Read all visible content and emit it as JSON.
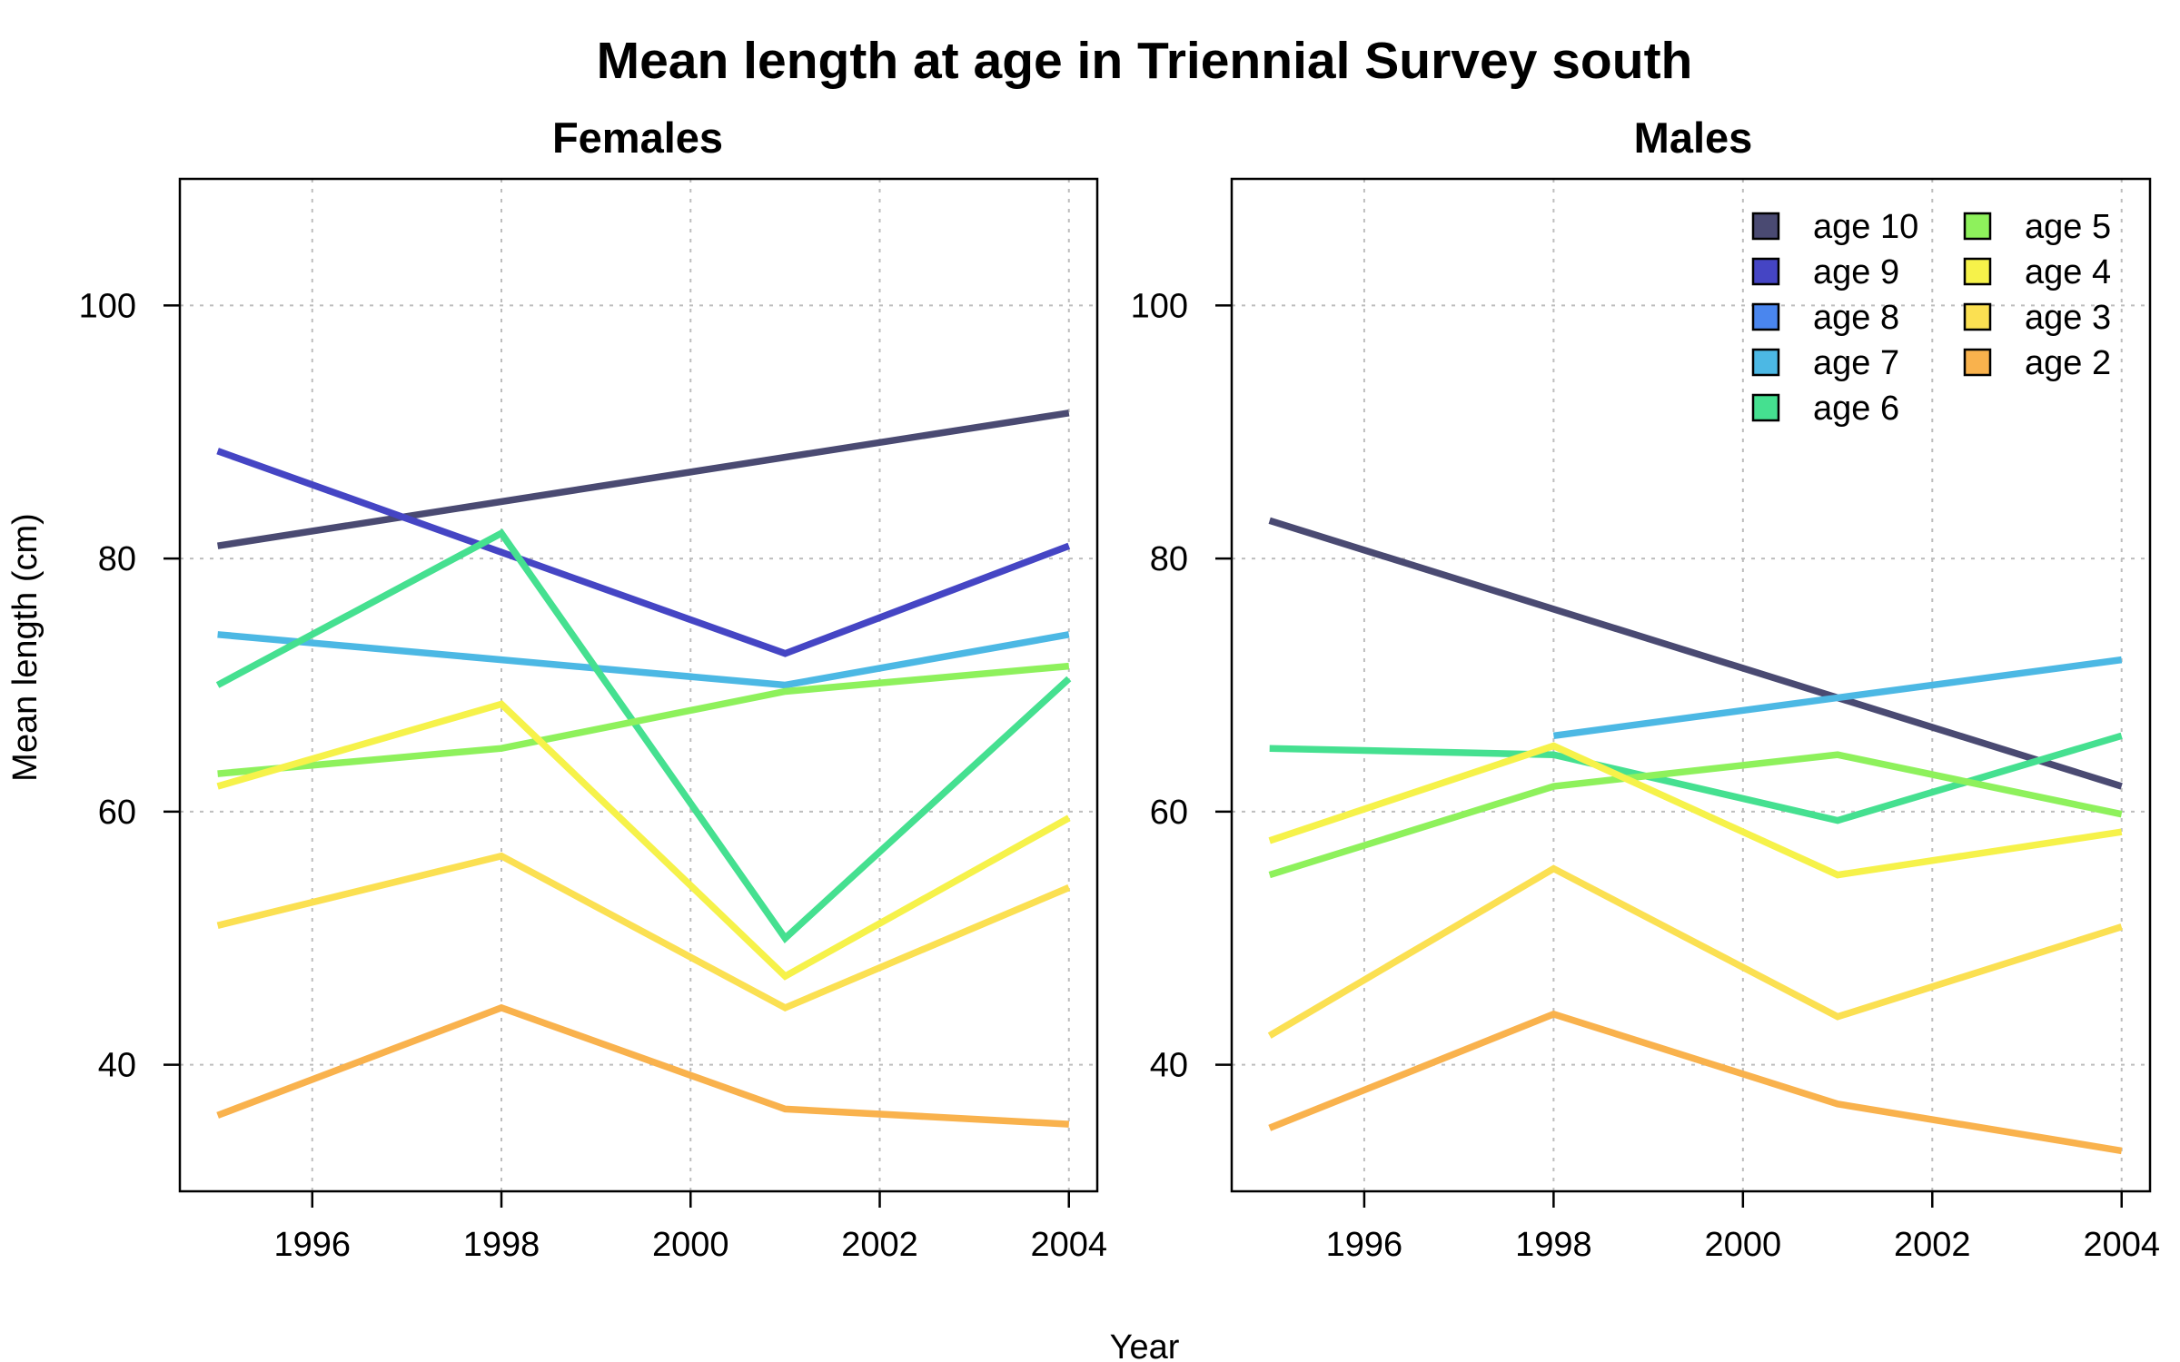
{
  "title": "Mean length at age in Triennial Survey south",
  "chart_data": [
    {
      "type": "line",
      "title": "Females",
      "xlabel": "Year",
      "ylabel": "Mean length (cm)",
      "xlim": [
        1994.6,
        2004.3
      ],
      "ylim": [
        30,
        110
      ],
      "xticks": [
        1996,
        1998,
        2000,
        2002,
        2004
      ],
      "yticks": [
        40,
        60,
        80,
        100
      ],
      "grid": true,
      "series": [
        {
          "name": "age 10",
          "color": "#4a4a72",
          "x": [
            1995,
            2004
          ],
          "values": [
            81,
            91.5
          ]
        },
        {
          "name": "age 9",
          "color": "#4545c4",
          "x": [
            1995,
            1998,
            2001,
            2004
          ],
          "values": [
            88.5,
            80.5,
            72.5,
            81
          ]
        },
        {
          "name": "age 7",
          "color": "#4cb8e4",
          "x": [
            1995,
            1998,
            2001,
            2004
          ],
          "values": [
            74,
            72,
            70,
            74
          ]
        },
        {
          "name": "age 6",
          "color": "#45e090",
          "x": [
            1995,
            1998,
            2001,
            2004
          ],
          "values": [
            70,
            82,
            50,
            70.5
          ]
        },
        {
          "name": "age 5",
          "color": "#8ef15c",
          "x": [
            1995,
            1998,
            2001,
            2004
          ],
          "values": [
            63,
            65,
            69.5,
            71.5
          ]
        },
        {
          "name": "age 4",
          "color": "#f6f24a",
          "x": [
            1995,
            1998,
            2001,
            2004
          ],
          "values": [
            62,
            68.5,
            47,
            59.5
          ]
        },
        {
          "name": "age 3",
          "color": "#fbe052",
          "x": [
            1995,
            1998,
            2001,
            2004
          ],
          "values": [
            51,
            56.5,
            44.5,
            54
          ]
        },
        {
          "name": "age 2",
          "color": "#f9b24d",
          "x": [
            1995,
            1998,
            2001,
            2004
          ],
          "values": [
            36,
            44.5,
            36.5,
            35.3
          ]
        }
      ]
    },
    {
      "type": "line",
      "title": "Males",
      "xlabel": "Year",
      "ylabel": "",
      "xlim": [
        1994.6,
        2004.3
      ],
      "ylim": [
        30,
        110
      ],
      "xticks": [
        1996,
        1998,
        2000,
        2002,
        2004
      ],
      "yticks": [
        40,
        60,
        80,
        100
      ],
      "grid": true,
      "legend": {
        "position": "top-right",
        "items": [
          {
            "label": "age 10",
            "color": "#4a4a72"
          },
          {
            "label": "age 9",
            "color": "#4545c4"
          },
          {
            "label": "age 8",
            "color": "#4a86ee"
          },
          {
            "label": "age 7",
            "color": "#4cb8e4"
          },
          {
            "label": "age 6",
            "color": "#45e090"
          },
          {
            "label": "age 5",
            "color": "#8ef15c"
          },
          {
            "label": "age 4",
            "color": "#f6f24a"
          },
          {
            "label": "age 3",
            "color": "#fbe052"
          },
          {
            "label": "age 2",
            "color": "#f9b24d"
          }
        ]
      },
      "series": [
        {
          "name": "age 10",
          "color": "#4a4a72",
          "x": [
            1995,
            2004
          ],
          "values": [
            83,
            62
          ]
        },
        {
          "name": "age 7",
          "color": "#4cb8e4",
          "x": [
            1998,
            2004
          ],
          "values": [
            66,
            72
          ]
        },
        {
          "name": "age 6",
          "color": "#45e090",
          "x": [
            1995,
            1998,
            2001,
            2004
          ],
          "values": [
            65,
            64.5,
            59.3,
            66
          ]
        },
        {
          "name": "age 5",
          "color": "#8ef15c",
          "x": [
            1995,
            1998,
            2001,
            2004
          ],
          "values": [
            55,
            62,
            64.5,
            59.8
          ]
        },
        {
          "name": "age 4",
          "color": "#f6f24a",
          "x": [
            1995,
            1998,
            2001,
            2004
          ],
          "values": [
            57.7,
            65.2,
            55,
            58.4
          ]
        },
        {
          "name": "age 3",
          "color": "#fbe052",
          "x": [
            1995,
            1998,
            2001,
            2004
          ],
          "values": [
            42.3,
            55.5,
            43.8,
            50.9
          ]
        },
        {
          "name": "age 2",
          "color": "#f9b24d",
          "x": [
            1995,
            1998,
            2001,
            2004
          ],
          "values": [
            35,
            44,
            36.9,
            33.2
          ]
        }
      ]
    }
  ]
}
